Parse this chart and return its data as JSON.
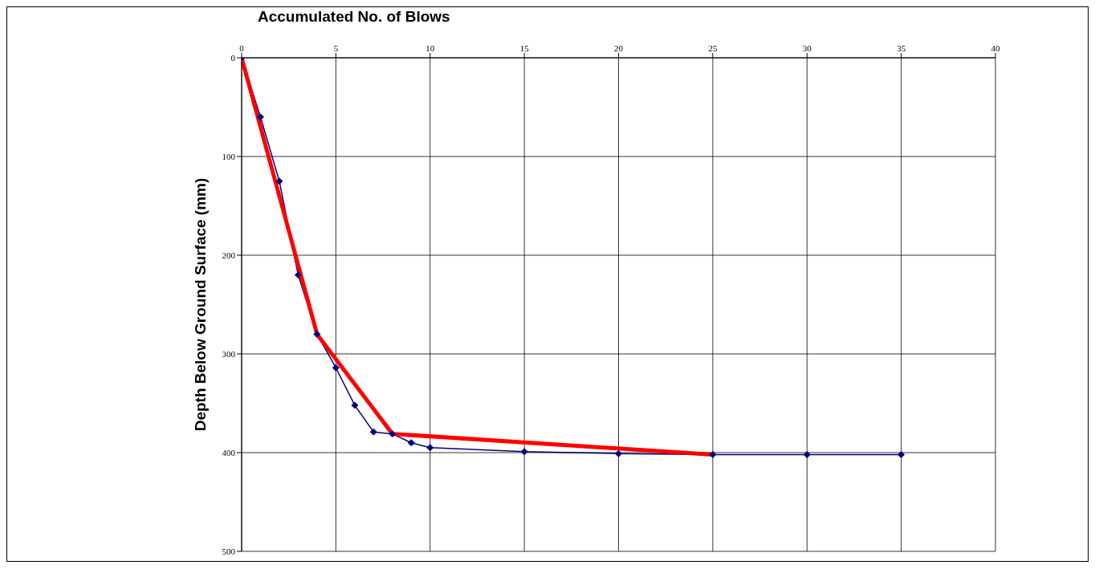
{
  "chart_data": {
    "type": "line",
    "xlabel": "Accumulated No. of Blows",
    "ylabel": "Depth Below Ground Surface (mm)",
    "xlim": [
      0,
      40
    ],
    "xticks": [
      0,
      5,
      10,
      15,
      20,
      25,
      30,
      35,
      40
    ],
    "ylim": [
      500,
      0
    ],
    "yticks": [
      0,
      100,
      200,
      300,
      400,
      500
    ],
    "grid": true,
    "series": [
      {
        "color": "#000080",
        "marker": "diamond",
        "x": [
          0,
          1,
          2,
          3,
          4,
          5,
          6,
          7,
          8,
          9,
          10,
          15,
          20,
          25,
          30,
          35
        ],
        "values": [
          0,
          60,
          125,
          220,
          280,
          314,
          352,
          379,
          381,
          390,
          395,
          399,
          401,
          402,
          402,
          402
        ]
      },
      {
        "color": "#ff0000",
        "marker": "none",
        "x": [
          0,
          4,
          8,
          25
        ],
        "values": [
          0,
          280,
          381,
          402
        ]
      }
    ]
  }
}
